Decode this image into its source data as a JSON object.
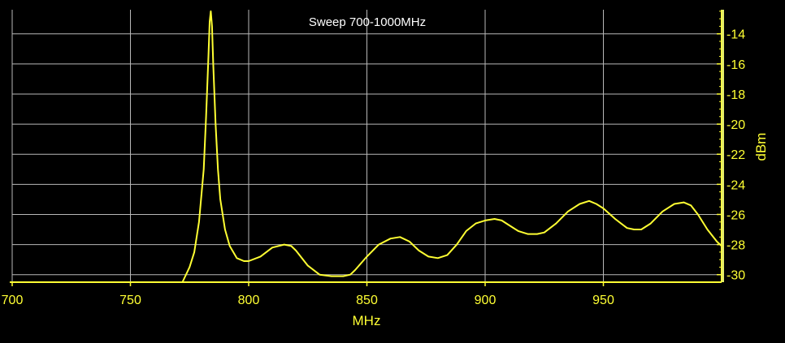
{
  "chart_data": {
    "type": "line",
    "title": "Sweep 700-1000MHz",
    "xlabel": "MHz",
    "ylabel": "dBm",
    "xlim": [
      700,
      1000
    ],
    "ylim": [
      -30.5,
      -12.4
    ],
    "x_ticks": [
      "700",
      "750",
      "800",
      "850",
      "900",
      "950"
    ],
    "y_ticks": [
      "-14",
      "-16",
      "-18",
      "-20",
      "-22",
      "-24",
      "-26",
      "-28",
      "-30"
    ],
    "grid": true,
    "y_axis_side": "right",
    "series": [
      {
        "color": "#ffff33",
        "x": [
          700,
          720,
          740,
          760,
          770,
          772,
          775,
          777,
          779,
          781,
          782,
          783,
          783.5,
          784,
          784.5,
          785,
          786,
          787,
          788,
          790,
          792,
          795,
          798,
          800,
          805,
          810,
          815,
          818,
          820,
          825,
          830,
          835,
          840,
          843,
          845,
          850,
          855,
          860,
          864,
          868,
          872,
          876,
          880,
          884,
          888,
          892,
          896,
          900,
          904,
          907,
          910,
          914,
          918,
          922,
          925,
          930,
          935,
          940,
          944,
          947,
          950,
          955,
          960,
          963,
          966,
          970,
          975,
          980,
          984,
          987,
          990,
          994,
          998,
          1000
        ],
        "y": [
          -30.5,
          -30.5,
          -30.5,
          -30.5,
          -30.5,
          -30.5,
          -29.5,
          -28.5,
          -26.5,
          -23,
          -19.5,
          -15.5,
          -13.2,
          -12.5,
          -13.5,
          -16,
          -20,
          -23,
          -25,
          -27,
          -28.1,
          -28.9,
          -29.1,
          -29.1,
          -28.8,
          -28.2,
          -28,
          -28.1,
          -28.4,
          -29.4,
          -30,
          -30.1,
          -30.1,
          -30,
          -29.7,
          -28.8,
          -28,
          -27.6,
          -27.5,
          -27.8,
          -28.4,
          -28.8,
          -28.9,
          -28.7,
          -28,
          -27.1,
          -26.6,
          -26.4,
          -26.3,
          -26.4,
          -26.7,
          -27.1,
          -27.3,
          -27.3,
          -27.2,
          -26.6,
          -25.8,
          -25.3,
          -25.1,
          -25.3,
          -25.6,
          -26.3,
          -26.9,
          -27,
          -27,
          -26.6,
          -25.8,
          -25.3,
          -25.2,
          -25.4,
          -26,
          -27,
          -27.8,
          -28.1
        ]
      }
    ]
  }
}
